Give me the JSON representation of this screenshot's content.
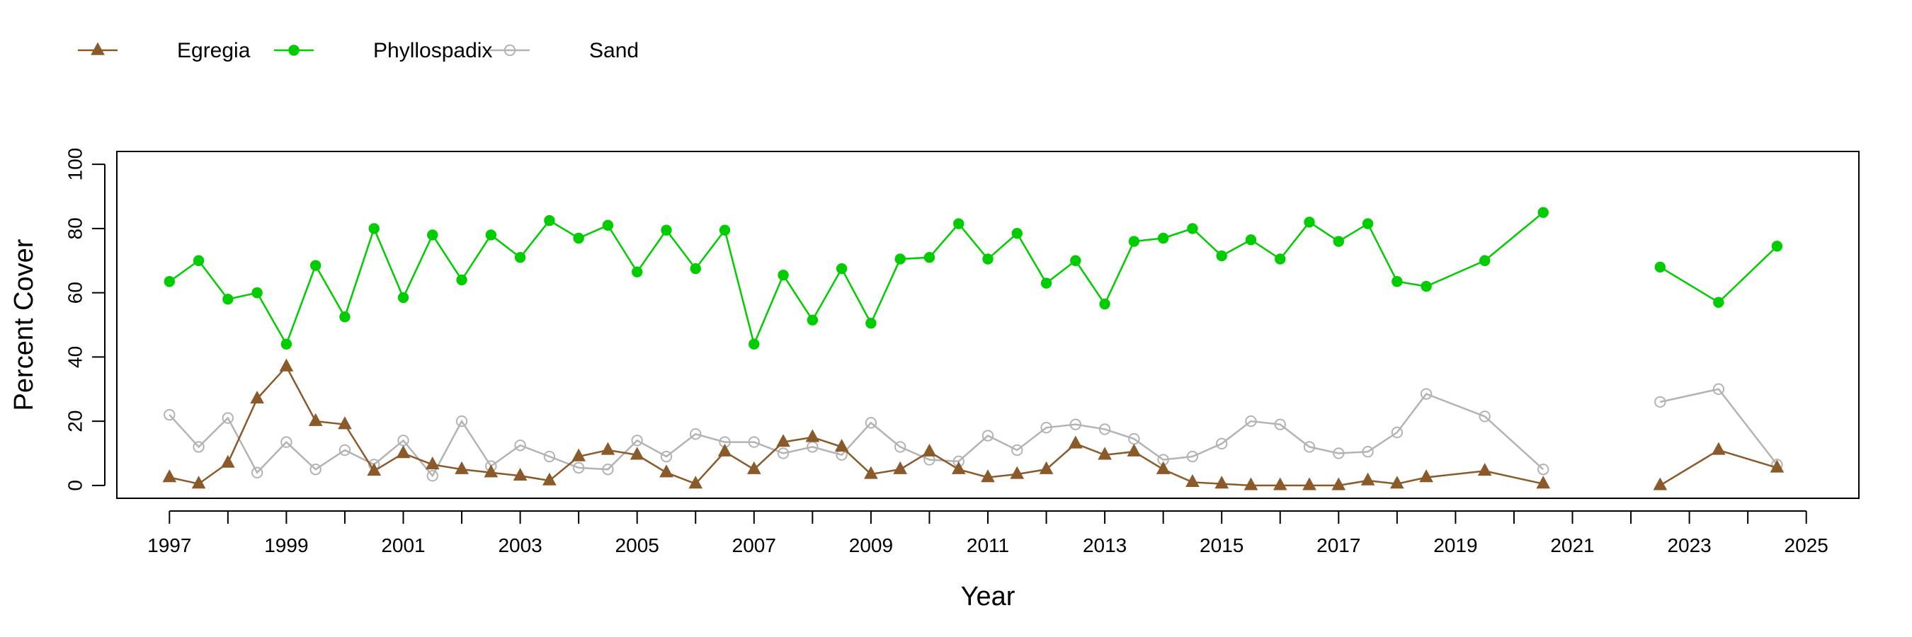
{
  "chart_data": {
    "type": "line",
    "xlabel": "Year",
    "ylabel": "Percent Cover",
    "xlim": [
      1996.1,
      2025.9
    ],
    "ylim": [
      -4,
      104
    ],
    "x_ticks": [
      1997,
      1998,
      1999,
      2000,
      2001,
      2002,
      2003,
      2004,
      2005,
      2006,
      2007,
      2008,
      2009,
      2010,
      2011,
      2012,
      2013,
      2014,
      2015,
      2016,
      2017,
      2018,
      2019,
      2020,
      2021,
      2022,
      2023,
      2024,
      2025
    ],
    "x_tick_labels": [
      "1997",
      "1999",
      "2001",
      "2003",
      "2005",
      "2007",
      "2009",
      "2011",
      "2013",
      "2015",
      "2017",
      "2019",
      "2021",
      "2023",
      "2025"
    ],
    "y_ticks": [
      0,
      20,
      40,
      60,
      80,
      100
    ],
    "y_tick_labels": [
      "0",
      "20",
      "40",
      "60",
      "80",
      "100"
    ],
    "legend_position": "top-left",
    "series": [
      {
        "name": "Egregia",
        "color": "#8B5A2B",
        "marker": "filled-triangle",
        "points": [
          [
            1997.0,
            2.5
          ],
          [
            1997.5,
            0.5
          ],
          [
            1998.0,
            7
          ],
          [
            1998.5,
            27
          ],
          [
            1999.0,
            37
          ],
          [
            1999.5,
            20
          ],
          [
            2000.0,
            19
          ],
          [
            2000.5,
            4.5
          ],
          [
            2001.0,
            10
          ],
          [
            2001.5,
            6.5
          ],
          [
            2002.0,
            5
          ],
          [
            2002.5,
            4
          ],
          [
            2003.0,
            3
          ],
          [
            2003.5,
            1.5
          ],
          [
            2004.0,
            9
          ],
          [
            2004.5,
            11
          ],
          [
            2005.0,
            9.5
          ],
          [
            2005.5,
            4
          ],
          [
            2006.0,
            0.5
          ],
          [
            2006.5,
            10.5
          ],
          [
            2007.0,
            5
          ],
          [
            2007.5,
            13.5
          ],
          [
            2008.0,
            15
          ],
          [
            2008.5,
            12
          ],
          [
            2009.0,
            3.5
          ],
          [
            2009.5,
            5
          ],
          [
            2010.0,
            10.5
          ],
          [
            2010.5,
            5
          ],
          [
            2011.0,
            2.5
          ],
          [
            2011.5,
            3.5
          ],
          [
            2012.0,
            5
          ],
          [
            2012.5,
            13
          ],
          [
            2013.0,
            9.5
          ],
          [
            2013.5,
            10.5
          ],
          [
            2014.0,
            5
          ],
          [
            2014.5,
            1
          ],
          [
            2015.0,
            0.5
          ],
          [
            2015.5,
            0
          ],
          [
            2016.0,
            0
          ],
          [
            2016.5,
            0
          ],
          [
            2017.0,
            0
          ],
          [
            2017.5,
            1.5
          ],
          [
            2018.0,
            0.5
          ],
          [
            2018.5,
            2.5
          ],
          [
            2019.5,
            4.5
          ],
          [
            2020.5,
            0.5
          ],
          null,
          [
            2022.5,
            0
          ],
          [
            2023.5,
            11
          ],
          [
            2024.5,
            5.5
          ]
        ]
      },
      {
        "name": "Phyllospadix",
        "color": "#00CD00",
        "marker": "filled-circle",
        "points": [
          [
            1997.0,
            63.5
          ],
          [
            1997.5,
            70
          ],
          [
            1998.0,
            58
          ],
          [
            1998.5,
            60
          ],
          [
            1999.0,
            44
          ],
          [
            1999.5,
            68.5
          ],
          [
            2000.0,
            52.5
          ],
          [
            2000.5,
            80
          ],
          [
            2001.0,
            58.5
          ],
          [
            2001.5,
            78
          ],
          [
            2002.0,
            64
          ],
          [
            2002.5,
            78
          ],
          [
            2003.0,
            71
          ],
          [
            2003.5,
            82.5
          ],
          [
            2004.0,
            77
          ],
          [
            2004.5,
            81
          ],
          [
            2005.0,
            66.5
          ],
          [
            2005.5,
            79.5
          ],
          [
            2006.0,
            67.5
          ],
          [
            2006.5,
            79.5
          ],
          [
            2007.0,
            44
          ],
          [
            2007.5,
            65.5
          ],
          [
            2008.0,
            51.5
          ],
          [
            2008.5,
            67.5
          ],
          [
            2009.0,
            50.5
          ],
          [
            2009.5,
            70.5
          ],
          [
            2010.0,
            71
          ],
          [
            2010.5,
            81.5
          ],
          [
            2011.0,
            70.5
          ],
          [
            2011.5,
            78.5
          ],
          [
            2012.0,
            63
          ],
          [
            2012.5,
            70
          ],
          [
            2013.0,
            56.5
          ],
          [
            2013.5,
            76
          ],
          [
            2014.0,
            77
          ],
          [
            2014.5,
            80
          ],
          [
            2015.0,
            71.5
          ],
          [
            2015.5,
            76.5
          ],
          [
            2016.0,
            70.5
          ],
          [
            2016.5,
            82
          ],
          [
            2017.0,
            76
          ],
          [
            2017.5,
            81.5
          ],
          [
            2018.0,
            63.5
          ],
          [
            2018.5,
            62
          ],
          [
            2019.5,
            70
          ],
          [
            2020.5,
            85
          ],
          null,
          [
            2022.5,
            68
          ],
          [
            2023.5,
            57
          ],
          [
            2024.5,
            74.5
          ]
        ]
      },
      {
        "name": "Sand",
        "color": "#B3B3B3",
        "marker": "open-circle",
        "points": [
          [
            1997.0,
            22
          ],
          [
            1997.5,
            12
          ],
          [
            1998.0,
            21
          ],
          [
            1998.5,
            4
          ],
          [
            1999.0,
            13.5
          ],
          [
            1999.5,
            5
          ],
          [
            2000.0,
            11
          ],
          [
            2000.5,
            6.5
          ],
          [
            2001.0,
            14
          ],
          [
            2001.5,
            3
          ],
          [
            2002.0,
            20
          ],
          [
            2002.5,
            6
          ],
          [
            2003.0,
            12.5
          ],
          [
            2003.5,
            9
          ],
          [
            2004.0,
            5.5
          ],
          [
            2004.5,
            5
          ],
          [
            2005.0,
            14
          ],
          [
            2005.5,
            9
          ],
          [
            2006.0,
            16
          ],
          [
            2006.5,
            13.5
          ],
          [
            2007.0,
            13.5
          ],
          [
            2007.5,
            10
          ],
          [
            2008.0,
            12
          ],
          [
            2008.5,
            9.5
          ],
          [
            2009.0,
            19.5
          ],
          [
            2009.5,
            12
          ],
          [
            2010.0,
            8
          ],
          [
            2010.5,
            7.5
          ],
          [
            2011.0,
            15.5
          ],
          [
            2011.5,
            11
          ],
          [
            2012.0,
            18
          ],
          [
            2012.5,
            19
          ],
          [
            2013.0,
            17.5
          ],
          [
            2013.5,
            14.5
          ],
          [
            2014.0,
            8
          ],
          [
            2014.5,
            9
          ],
          [
            2015.0,
            13
          ],
          [
            2015.5,
            20
          ],
          [
            2016.0,
            19
          ],
          [
            2016.5,
            12
          ],
          [
            2017.0,
            10
          ],
          [
            2017.5,
            10.5
          ],
          [
            2018.0,
            16.5
          ],
          [
            2018.5,
            28.5
          ],
          [
            2019.5,
            21.5
          ],
          [
            2020.5,
            5
          ],
          null,
          [
            2022.5,
            26
          ],
          [
            2023.5,
            30
          ],
          [
            2024.5,
            6.5
          ]
        ]
      }
    ]
  }
}
